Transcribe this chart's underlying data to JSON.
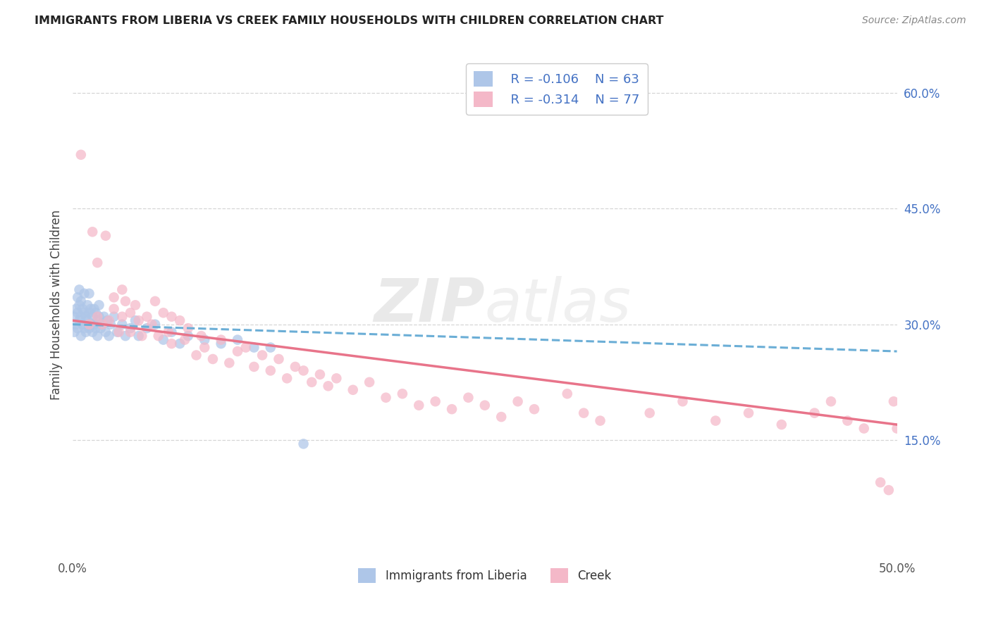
{
  "title": "IMMIGRANTS FROM LIBERIA VS CREEK FAMILY HOUSEHOLDS WITH CHILDREN CORRELATION CHART",
  "source": "Source: ZipAtlas.com",
  "ylabel_label": "Family Households with Children",
  "x_min": 0.0,
  "x_max": 0.5,
  "y_min": 0.0,
  "y_max": 0.65,
  "liberia_color": "#aec6e8",
  "creek_color": "#f4b8c8",
  "liberia_line_color": "#6baed6",
  "creek_line_color": "#e8748a",
  "legend_R_liberia": "R = -0.106",
  "legend_N_liberia": "N = 63",
  "legend_R_creek": "R = -0.314",
  "legend_N_creek": "N = 77",
  "watermark_zip": "ZIP",
  "watermark_atlas": "atlas",
  "bg_color": "#ffffff",
  "grid_color": "#cccccc",
  "right_tick_color": "#4472c4",
  "title_color": "#222222",
  "source_color": "#888888",
  "ylabel_color": "#444444",
  "liberia_x": [
    0.001,
    0.001,
    0.002,
    0.002,
    0.003,
    0.003,
    0.003,
    0.004,
    0.004,
    0.004,
    0.005,
    0.005,
    0.005,
    0.006,
    0.006,
    0.007,
    0.007,
    0.007,
    0.008,
    0.008,
    0.009,
    0.009,
    0.01,
    0.01,
    0.01,
    0.011,
    0.011,
    0.012,
    0.012,
    0.013,
    0.013,
    0.014,
    0.014,
    0.015,
    0.015,
    0.016,
    0.016,
    0.017,
    0.018,
    0.019,
    0.02,
    0.021,
    0.022,
    0.023,
    0.025,
    0.027,
    0.03,
    0.032,
    0.035,
    0.038,
    0.04,
    0.045,
    0.05,
    0.055,
    0.06,
    0.065,
    0.07,
    0.08,
    0.09,
    0.1,
    0.11,
    0.12,
    0.14
  ],
  "liberia_y": [
    0.29,
    0.31,
    0.3,
    0.32,
    0.295,
    0.315,
    0.335,
    0.305,
    0.325,
    0.345,
    0.285,
    0.31,
    0.33,
    0.3,
    0.32,
    0.295,
    0.315,
    0.34,
    0.29,
    0.31,
    0.305,
    0.325,
    0.295,
    0.315,
    0.34,
    0.3,
    0.32,
    0.29,
    0.31,
    0.3,
    0.32,
    0.295,
    0.315,
    0.285,
    0.305,
    0.31,
    0.325,
    0.295,
    0.3,
    0.31,
    0.29,
    0.305,
    0.285,
    0.3,
    0.31,
    0.29,
    0.3,
    0.285,
    0.295,
    0.305,
    0.285,
    0.295,
    0.3,
    0.28,
    0.29,
    0.275,
    0.285,
    0.28,
    0.275,
    0.28,
    0.27,
    0.27,
    0.145
  ],
  "creek_x": [
    0.005,
    0.01,
    0.012,
    0.015,
    0.015,
    0.018,
    0.02,
    0.022,
    0.025,
    0.025,
    0.028,
    0.03,
    0.03,
    0.032,
    0.035,
    0.035,
    0.038,
    0.04,
    0.042,
    0.045,
    0.048,
    0.05,
    0.052,
    0.055,
    0.058,
    0.06,
    0.06,
    0.065,
    0.068,
    0.07,
    0.075,
    0.078,
    0.08,
    0.085,
    0.09,
    0.095,
    0.1,
    0.105,
    0.11,
    0.115,
    0.12,
    0.125,
    0.13,
    0.135,
    0.14,
    0.145,
    0.15,
    0.155,
    0.16,
    0.17,
    0.18,
    0.19,
    0.2,
    0.21,
    0.22,
    0.23,
    0.24,
    0.25,
    0.26,
    0.27,
    0.28,
    0.3,
    0.31,
    0.32,
    0.35,
    0.37,
    0.39,
    0.41,
    0.43,
    0.45,
    0.46,
    0.47,
    0.48,
    0.49,
    0.495,
    0.498,
    0.5
  ],
  "creek_y": [
    0.52,
    0.3,
    0.42,
    0.31,
    0.38,
    0.3,
    0.415,
    0.305,
    0.335,
    0.32,
    0.29,
    0.345,
    0.31,
    0.33,
    0.315,
    0.29,
    0.325,
    0.305,
    0.285,
    0.31,
    0.3,
    0.33,
    0.285,
    0.315,
    0.29,
    0.31,
    0.275,
    0.305,
    0.28,
    0.295,
    0.26,
    0.285,
    0.27,
    0.255,
    0.28,
    0.25,
    0.265,
    0.27,
    0.245,
    0.26,
    0.24,
    0.255,
    0.23,
    0.245,
    0.24,
    0.225,
    0.235,
    0.22,
    0.23,
    0.215,
    0.225,
    0.205,
    0.21,
    0.195,
    0.2,
    0.19,
    0.205,
    0.195,
    0.18,
    0.2,
    0.19,
    0.21,
    0.185,
    0.175,
    0.185,
    0.2,
    0.175,
    0.185,
    0.17,
    0.185,
    0.2,
    0.175,
    0.165,
    0.095,
    0.085,
    0.2,
    0.165
  ],
  "lib_line_x": [
    0.0,
    0.5
  ],
  "lib_line_y": [
    0.3,
    0.265
  ],
  "creek_line_x": [
    0.0,
    0.5
  ],
  "creek_line_y": [
    0.305,
    0.17
  ]
}
